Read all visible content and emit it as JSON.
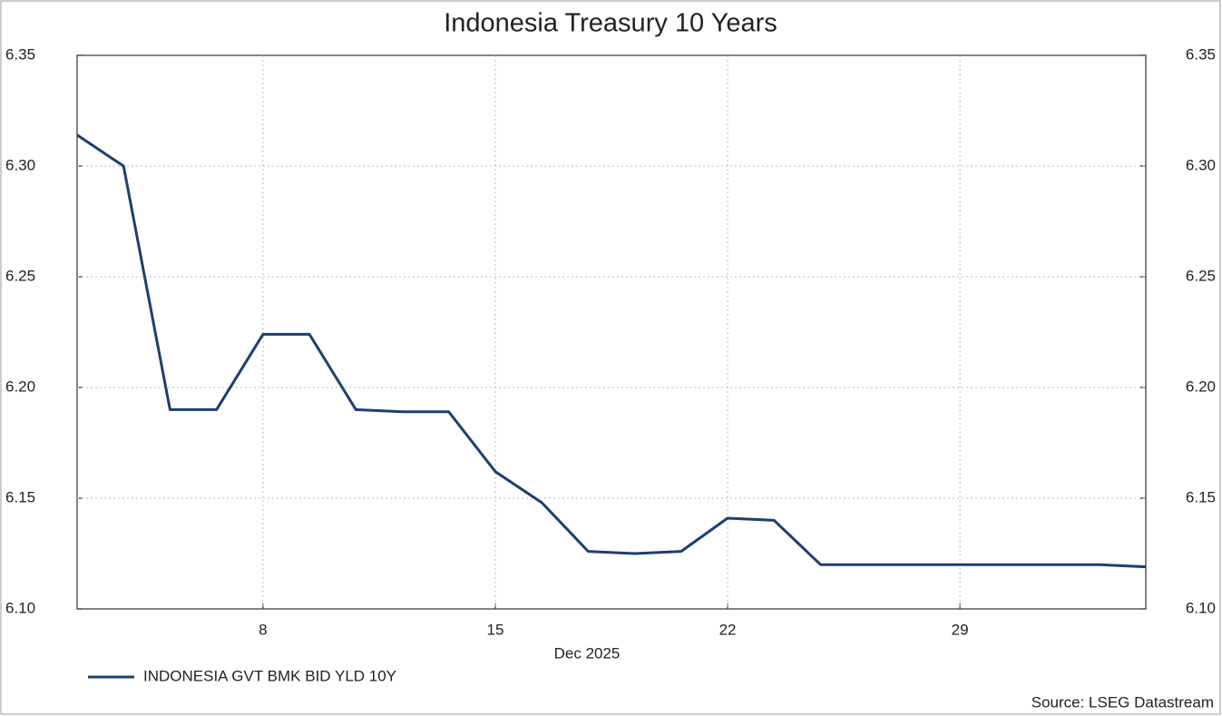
{
  "chart_data": {
    "type": "line",
    "title": "Indonesia Treasury 10 Years",
    "x_label": "Dec 2025",
    "source": "Source: LSEG Datastream",
    "categories": [
      null,
      null,
      null,
      null,
      "8",
      null,
      null,
      null,
      null,
      "15",
      null,
      null,
      null,
      null,
      "22",
      null,
      null,
      null,
      null,
      "29",
      null,
      null,
      null,
      null
    ],
    "series": [
      {
        "name": "INDONESIA GVT BMK BID YLD 10Y",
        "color": "#1c3f6e",
        "values": [
          6.314,
          6.3,
          6.19,
          6.19,
          6.224,
          6.224,
          6.19,
          6.189,
          6.189,
          6.162,
          6.148,
          6.126,
          6.125,
          6.126,
          6.141,
          6.14,
          6.12,
          6.12,
          6.12,
          6.12,
          6.12,
          6.12,
          6.12,
          6.119
        ]
      }
    ],
    "ylim": [
      6.1,
      6.35
    ],
    "yticks": [
      {
        "value": 6.1,
        "label": "6.10"
      },
      6.15,
      {
        "value": 6.2,
        "label": "6.20"
      },
      6.25,
      {
        "value": 6.3,
        "label": "6.30"
      },
      6.35
    ],
    "grid": true
  }
}
